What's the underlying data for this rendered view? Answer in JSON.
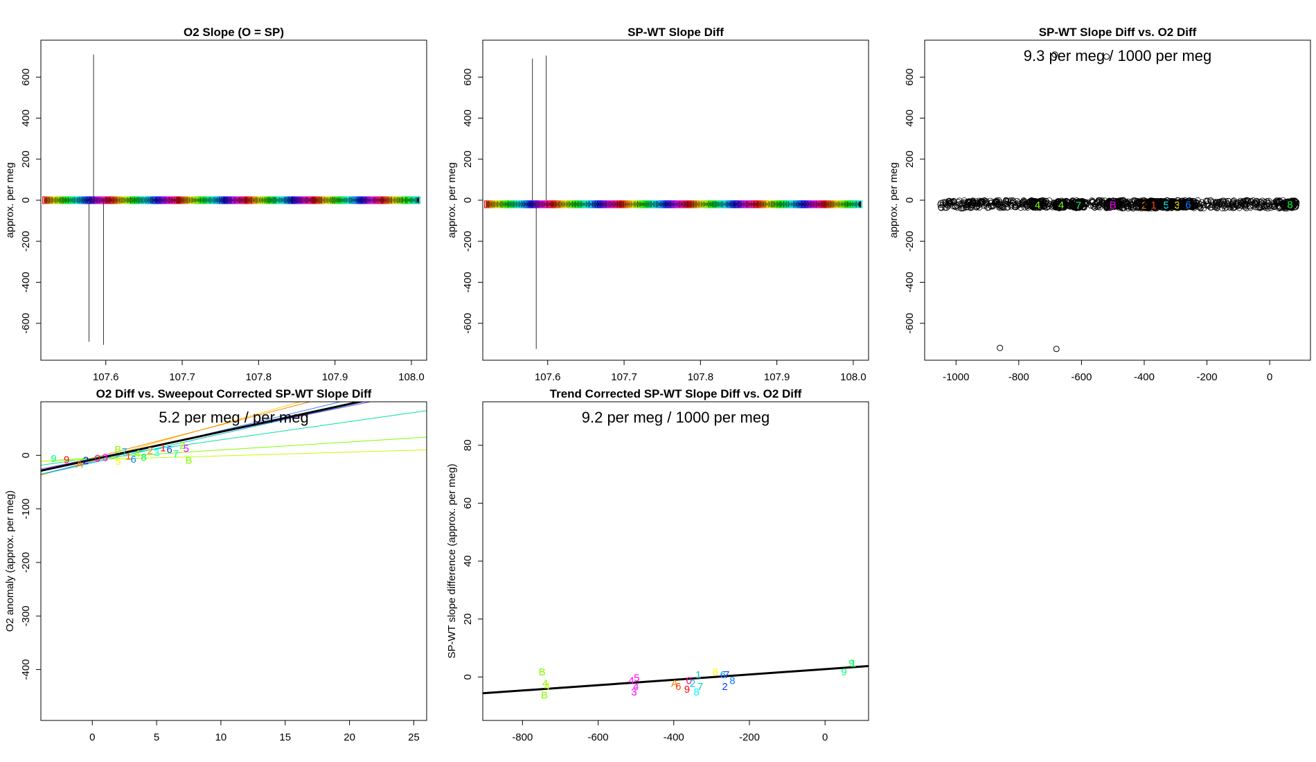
{
  "chart_data": [
    {
      "type": "line",
      "title": "O2 Slope (O = SP)",
      "xlabel": "",
      "ylabel": "approx. per meg",
      "xlim": [
        107.515,
        108.02
      ],
      "ylim": [
        -780,
        780
      ],
      "xticks": [
        "107.6",
        "107.7",
        "107.8",
        "107.9",
        "108.0"
      ],
      "xtick_values": [
        107.6,
        107.7,
        107.8,
        107.9,
        108.0
      ],
      "yticks": [
        "-600",
        "-400",
        "-200",
        "0",
        "200",
        "400",
        "600"
      ],
      "ytick_values": [
        -600,
        -400,
        -200,
        0,
        200,
        400,
        600
      ],
      "series_band": {
        "x_start": 107.52,
        "x_end": 108.01,
        "y_center": 0,
        "y_spread": 12
      },
      "spikes": [
        {
          "x": 107.584,
          "y_from": 0,
          "y_to": 710
        },
        {
          "x": 107.578,
          "y_from": 0,
          "y_to": -690
        },
        {
          "x": 107.597,
          "y_from": 0,
          "y_to": -705
        }
      ]
    },
    {
      "type": "line",
      "title": "SP-WT Slope Diff",
      "xlabel": "",
      "ylabel": "approx. per meg",
      "xlim": [
        107.515,
        108.02
      ],
      "ylim": [
        -780,
        780
      ],
      "xticks": [
        "107.6",
        "107.7",
        "107.8",
        "107.9",
        "108.0"
      ],
      "xtick_values": [
        107.6,
        107.7,
        107.8,
        107.9,
        108.0
      ],
      "yticks": [
        "-600",
        "-400",
        "-200",
        "0",
        "200",
        "400",
        "600"
      ],
      "ytick_values": [
        -600,
        -400,
        -200,
        0,
        200,
        400,
        600
      ],
      "series_band": {
        "x_start": 107.52,
        "x_end": 108.01,
        "y_center": -20,
        "y_spread": 12
      },
      "spikes": [
        {
          "x": 107.58,
          "y_from": 0,
          "y_to": 690
        },
        {
          "x": 107.598,
          "y_from": 0,
          "y_to": 705
        },
        {
          "x": 107.585,
          "y_from": 0,
          "y_to": -725
        }
      ]
    },
    {
      "type": "scatter",
      "title": "SP-WT Slope Diff vs. O2 Diff",
      "xlabel": "",
      "ylabel": "approx. per meg",
      "annotation": "9.3 per meg / 1000 per meg",
      "xlim": [
        -1100,
        130
      ],
      "ylim": [
        -780,
        780
      ],
      "xticks": [
        "-1000",
        "-800",
        "-600",
        "-400",
        "-200",
        "0"
      ],
      "xtick_values": [
        -1000,
        -800,
        -600,
        -400,
        -200,
        0
      ],
      "yticks": [
        "-600",
        "-400",
        "-200",
        "0",
        "200",
        "400",
        "600"
      ],
      "ytick_values": [
        -600,
        -400,
        -200,
        0,
        200,
        400,
        600
      ],
      "outliers": [
        {
          "x": -860,
          "y": -720
        },
        {
          "x": -680,
          "y": -725
        },
        {
          "x": -685,
          "y": 710
        },
        {
          "x": -520,
          "y": 700
        }
      ],
      "clusters": [
        {
          "label": "4",
          "x": -740,
          "y": -20,
          "color": "#80ff00"
        },
        {
          "label": "4",
          "x": -665,
          "y": -20,
          "color": "#80ff00"
        },
        {
          "label": "7",
          "x": -610,
          "y": -22,
          "color": "#00ff80"
        },
        {
          "label": "B",
          "x": -500,
          "y": -20,
          "color": "#ff00ff"
        },
        {
          "label": "2",
          "x": -400,
          "y": -22,
          "color": "#ff8000"
        },
        {
          "label": "1",
          "x": -370,
          "y": -20,
          "color": "#ff4000"
        },
        {
          "label": "5",
          "x": -330,
          "y": -20,
          "color": "#00ffff"
        },
        {
          "label": "3",
          "x": -295,
          "y": -20,
          "color": "#ffff00"
        },
        {
          "label": "6",
          "x": -260,
          "y": -18,
          "color": "#0080ff"
        },
        {
          "label": "8",
          "x": 65,
          "y": -18,
          "color": "#00ff40"
        }
      ]
    },
    {
      "type": "scatter",
      "title": "O2 Diff vs. Sweepout Corrected SP-WT Slope Diff",
      "xlabel": "",
      "ylabel": "O2 anomaly (approx. per meg)",
      "annotation": "5.2 per meg / per meg",
      "xlim": [
        -4,
        26
      ],
      "ylim": [
        -495,
        100
      ],
      "xticks": [
        "0",
        "5",
        "10",
        "15",
        "20",
        "25"
      ],
      "xtick_values": [
        0,
        5,
        10,
        15,
        20,
        25
      ],
      "yticks": [
        "-400",
        "-300",
        "-200",
        "-100",
        "0"
      ],
      "ytick_values": [
        -400,
        -300,
        -200,
        -100,
        0
      ],
      "fit": {
        "slope": 5.2,
        "intercept": -8
      },
      "group_fits": [
        {
          "slope": 6.8,
          "intercept": -10,
          "color": "#ffcc00"
        },
        {
          "slope": 6.2,
          "intercept": -5,
          "color": "#ff8000"
        },
        {
          "slope": 5.8,
          "intercept": -12,
          "color": "#4080ff"
        },
        {
          "slope": 5.4,
          "intercept": -14,
          "color": "#00c0c0"
        },
        {
          "slope": 4.9,
          "intercept": -6,
          "color": "#8040ff"
        },
        {
          "slope": 3.4,
          "intercept": -5,
          "color": "#00e0a0"
        },
        {
          "slope": 1.5,
          "intercept": -5,
          "color": "#80ff00"
        },
        {
          "slope": 0.7,
          "intercept": -8,
          "color": "#c0ff00"
        }
      ],
      "points": [
        {
          "label": "9",
          "x": -3.0,
          "y": -5,
          "color": "#00ff80"
        },
        {
          "label": "9",
          "x": -2.0,
          "y": -7,
          "color": "#ff0000"
        },
        {
          "label": "A",
          "x": -1.0,
          "y": -15,
          "color": "#ff8000"
        },
        {
          "label": "2",
          "x": -0.5,
          "y": -8,
          "color": "#0000ff"
        },
        {
          "label": "0",
          "x": 0.4,
          "y": -4,
          "color": "#ff0080"
        },
        {
          "label": "3",
          "x": 1.0,
          "y": -3,
          "color": "#ff00ff"
        },
        {
          "label": "B",
          "x": 2.0,
          "y": 12,
          "color": "#80ff00"
        },
        {
          "label": "5",
          "x": 2.0,
          "y": -10,
          "color": "#ffff00"
        },
        {
          "label": "7",
          "x": 2.5,
          "y": 8,
          "color": "#00c0ff"
        },
        {
          "label": "1",
          "x": 2.8,
          "y": 0,
          "color": "#ff4000"
        },
        {
          "label": "6",
          "x": 3.2,
          "y": -6,
          "color": "#0080ff"
        },
        {
          "label": "4",
          "x": 3.5,
          "y": 5,
          "color": "#80ff00"
        },
        {
          "label": "8",
          "x": 4.0,
          "y": -2,
          "color": "#00ff40"
        },
        {
          "label": "2",
          "x": 4.5,
          "y": 10,
          "color": "#ff8000"
        },
        {
          "label": "3",
          "x": 5.0,
          "y": 6,
          "color": "#00ffff"
        },
        {
          "label": "1",
          "x": 5.5,
          "y": 15,
          "color": "#ff0000"
        },
        {
          "label": "6",
          "x": 6.0,
          "y": 12,
          "color": "#0040ff"
        },
        {
          "label": "7",
          "x": 6.5,
          "y": 4,
          "color": "#00ff80"
        },
        {
          "label": "2",
          "x": 7.0,
          "y": 20,
          "color": "#80ff00"
        },
        {
          "label": "5",
          "x": 7.3,
          "y": 14,
          "color": "#ff00ff"
        },
        {
          "label": "B",
          "x": 7.5,
          "y": -8,
          "color": "#80ff00"
        }
      ]
    },
    {
      "type": "scatter",
      "title": "Trend Corrected SP-WT Slope Diff vs. O2 Diff",
      "xlabel": "",
      "ylabel": "SP-WT slope difference (approx. per meg)",
      "annotation": "9.2 per meg / 1000 per meg",
      "xlim": [
        -905,
        115
      ],
      "ylim": [
        -15,
        95
      ],
      "xticks": [
        "-800",
        "-600",
        "-400",
        "-200",
        "0"
      ],
      "xtick_values": [
        -800,
        -600,
        -400,
        -200,
        0
      ],
      "yticks": [
        "0",
        "20",
        "40",
        "60",
        "80"
      ],
      "ytick_values": [
        0,
        20,
        40,
        60,
        80
      ],
      "fit": {
        "slope": 0.0092,
        "intercept": 2.7
      },
      "points": [
        {
          "label": "B",
          "x": -748,
          "y": 2,
          "color": "#80ff00"
        },
        {
          "label": "4",
          "x": -740,
          "y": -2,
          "color": "#80ff00"
        },
        {
          "label": "4",
          "x": -735,
          "y": -3,
          "color": "#c0ff00"
        },
        {
          "label": "B",
          "x": -742,
          "y": -6,
          "color": "#80ff00"
        },
        {
          "label": "4",
          "x": -512,
          "y": -1,
          "color": "#ff00ff"
        },
        {
          "label": "5",
          "x": -498,
          "y": 0,
          "color": "#ff00ff"
        },
        {
          "label": "3",
          "x": -505,
          "y": -5,
          "color": "#ff00ff"
        },
        {
          "label": "4",
          "x": -500,
          "y": -3,
          "color": "#ff00ff"
        },
        {
          "label": "A",
          "x": -398,
          "y": -2,
          "color": "#ff8000"
        },
        {
          "label": "6",
          "x": -388,
          "y": -3,
          "color": "#ff4000"
        },
        {
          "label": "9",
          "x": -365,
          "y": -4,
          "color": "#ff0000"
        },
        {
          "label": "0",
          "x": -360,
          "y": -1,
          "color": "#ff0080"
        },
        {
          "label": "2",
          "x": -350,
          "y": -2,
          "color": "#00c0ff"
        },
        {
          "label": "8",
          "x": -340,
          "y": -5,
          "color": "#00ffff"
        },
        {
          "label": "1",
          "x": -335,
          "y": 1,
          "color": "#00c0c0"
        },
        {
          "label": "7",
          "x": -330,
          "y": -3,
          "color": "#00e0a0"
        },
        {
          "label": "8",
          "x": -290,
          "y": 2,
          "color": "#ffff00"
        },
        {
          "label": "6",
          "x": -270,
          "y": 1,
          "color": "#0080ff"
        },
        {
          "label": "7",
          "x": -260,
          "y": 1,
          "color": "#0040ff"
        },
        {
          "label": "2",
          "x": -265,
          "y": -3,
          "color": "#0040ff"
        },
        {
          "label": "8",
          "x": -245,
          "y": -1,
          "color": "#0080ff"
        },
        {
          "label": "9",
          "x": 50,
          "y": 2,
          "color": "#00ff80"
        },
        {
          "label": "9",
          "x": 70,
          "y": 5,
          "color": "#00ff40"
        },
        {
          "label": "1",
          "x": 75,
          "y": 5,
          "color": "#00ff80"
        }
      ]
    }
  ]
}
